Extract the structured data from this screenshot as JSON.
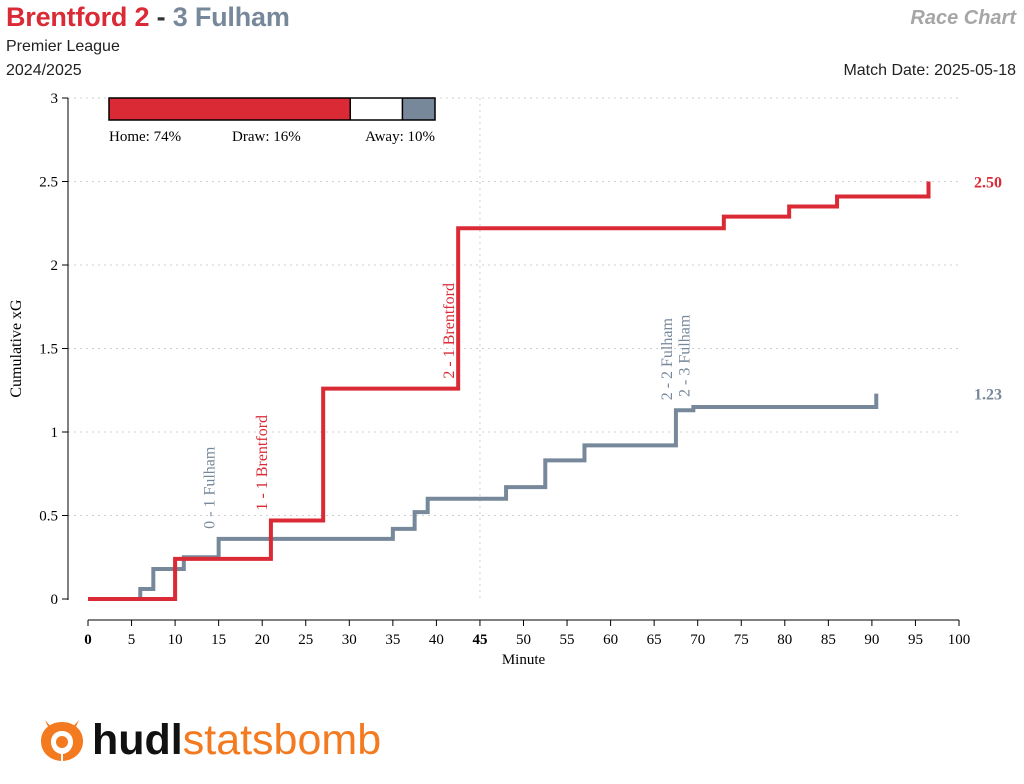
{
  "header": {
    "home_title": "Brentford 2",
    "separator": "-",
    "away_title": "3 Fulham",
    "competition": "Premier League",
    "season": "2024/2025",
    "chart_kind": "Race Chart",
    "match_date": "Match Date: 2025-05-18"
  },
  "colors": {
    "home": "#da2a35",
    "away": "#77889a",
    "grid": "#d0d0d0",
    "brand_orange": "#f47a20"
  },
  "win_probability": {
    "home_label": "Home: 74%",
    "draw_label": "Draw: 16%",
    "away_label": "Away: 10%",
    "home": 0.74,
    "draw": 0.16,
    "away": 0.1
  },
  "logo": {
    "part1": "hudl",
    "part2": "statsbomb",
    "icon": "statsbomb-bull-icon"
  },
  "chart_data": {
    "type": "line",
    "step": true,
    "xlabel": "Minute",
    "ylabel": "Cumulative xG",
    "xlim": [
      0,
      100
    ],
    "ylim": [
      0,
      3
    ],
    "xticks": [
      0,
      5,
      10,
      15,
      20,
      25,
      30,
      35,
      40,
      45,
      50,
      55,
      60,
      65,
      70,
      75,
      80,
      85,
      90,
      95,
      100
    ],
    "xtick_labels": [
      "0",
      "5",
      "10",
      "15",
      "20",
      "25",
      "30",
      "35",
      "40",
      "45",
      "50",
      "55",
      "60",
      "65",
      "70",
      "75",
      "80",
      "85",
      "90",
      "95",
      "100"
    ],
    "xticks_bold": [
      0,
      45
    ],
    "yticks": [
      0,
      0.5,
      1,
      1.5,
      2,
      2.5,
      3
    ],
    "ytick_labels": [
      "0",
      "0.5",
      "1",
      "1.5",
      "2",
      "2.5",
      "3"
    ],
    "halftime_line": 45,
    "grid": "horizontal dotted",
    "series": [
      {
        "team": "home",
        "x": [
          0,
          6.0,
          10.0,
          21.0,
          27.0,
          42.5,
          73.0,
          80.5,
          86.0,
          96.5,
          96.5
        ],
        "y": [
          0,
          0,
          0.24,
          0.47,
          1.26,
          2.22,
          2.29,
          2.35,
          2.41,
          2.41,
          2.5
        ],
        "end_label": "2.50"
      },
      {
        "team": "away",
        "x": [
          0,
          6.0,
          7.5,
          11.0,
          15.0,
          35.0,
          37.5,
          39.0,
          48.0,
          52.5,
          57.0,
          67.5,
          69.5,
          90.5,
          90.5
        ],
        "y": [
          0,
          0.06,
          0.18,
          0.25,
          0.36,
          0.42,
          0.52,
          0.6,
          0.67,
          0.83,
          0.92,
          1.13,
          1.15,
          1.15,
          1.23
        ],
        "end_label": "1.23"
      }
    ],
    "annotations": [
      {
        "text": "0 - 1 Fulham",
        "x": 15.0,
        "y": 0.36,
        "team": "away"
      },
      {
        "text": "1 - 1 Brentford",
        "x": 21.0,
        "y": 0.47,
        "team": "home"
      },
      {
        "text": "2 - 1 Brentford",
        "x": 42.5,
        "y": 1.26,
        "team": "home"
      },
      {
        "text": "2 - 2 Fulham",
        "x": 67.5,
        "y": 1.13,
        "team": "away"
      },
      {
        "text": "2 - 3 Fulham",
        "x": 69.5,
        "y": 1.15,
        "team": "away"
      }
    ]
  }
}
